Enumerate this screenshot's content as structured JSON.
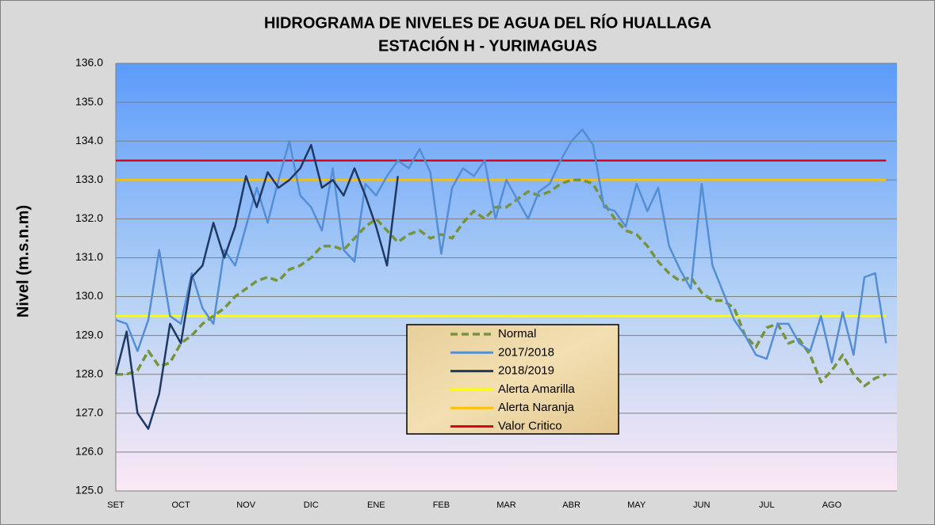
{
  "chart_data": {
    "type": "line",
    "title": "HIDROGRAMA DE NIVELES DE AGUA DEL RÍO HUALLAGA",
    "subtitle": "ESTACIÓN H - YURIMAGUAS",
    "y_label": "Nivel (m.s.n.m)",
    "categories": [
      "SET",
      null,
      null,
      null,
      null,
      null,
      "OCT",
      null,
      null,
      null,
      null,
      null,
      "NOV",
      null,
      null,
      null,
      null,
      null,
      "DIC",
      null,
      null,
      null,
      null,
      null,
      "ENE",
      null,
      null,
      null,
      null,
      null,
      "FEB",
      null,
      null,
      null,
      null,
      null,
      "MAR",
      null,
      null,
      null,
      null,
      null,
      "ABR",
      null,
      null,
      null,
      null,
      null,
      "MAY",
      null,
      null,
      null,
      null,
      null,
      "JUN",
      null,
      null,
      null,
      null,
      null,
      "JUL",
      null,
      null,
      null,
      null,
      null,
      "AGO",
      null,
      null,
      null,
      null,
      null
    ],
    "ylim": [
      125,
      136
    ],
    "yticks": [
      {
        "value": 125,
        "label": "125.0"
      },
      {
        "value": 126,
        "label": "126.0"
      },
      {
        "value": 127,
        "label": "127.0"
      },
      {
        "value": 128,
        "label": "128.0"
      },
      {
        "value": 129,
        "label": "129.0"
      },
      {
        "value": 130,
        "label": "130.0"
      },
      {
        "value": 131,
        "label": "131.0"
      },
      {
        "value": 132,
        "label": "132.0"
      },
      {
        "value": 133,
        "label": "133.0"
      },
      {
        "value": 134,
        "label": "134.0"
      },
      {
        "value": 135,
        "label": "135.0"
      },
      {
        "value": 136,
        "label": "136.0"
      }
    ],
    "grid": true,
    "series": [
      {
        "name": "Normal",
        "color": "#77933c",
        "dashed": true,
        "values": [
          128.0,
          128.0,
          128.1,
          128.6,
          128.2,
          128.3,
          128.8,
          129.0,
          129.3,
          129.5,
          129.7,
          130.0,
          130.2,
          130.4,
          130.5,
          130.4,
          130.7,
          130.8,
          131.0,
          131.3,
          131.3,
          131.2,
          131.5,
          131.8,
          132.0,
          131.7,
          131.4,
          131.6,
          131.7,
          131.5,
          131.6,
          131.5,
          131.9,
          132.2,
          132.0,
          132.3,
          132.3,
          132.5,
          132.7,
          132.6,
          132.7,
          132.9,
          133.0,
          133.0,
          132.9,
          132.4,
          132.0,
          131.7,
          131.6,
          131.3,
          130.9,
          130.6,
          130.4,
          130.5,
          130.1,
          129.9,
          129.9,
          129.7,
          129.0,
          128.7,
          129.2,
          129.3,
          128.8,
          128.9,
          128.5,
          127.8,
          128.1,
          128.5,
          128.0,
          127.7,
          127.9,
          128.0
        ]
      },
      {
        "name": "2017/2018",
        "color": "#558ed5",
        "values": [
          129.4,
          129.3,
          128.6,
          129.4,
          131.2,
          129.5,
          129.3,
          130.6,
          129.7,
          129.3,
          131.2,
          130.8,
          131.8,
          132.8,
          131.9,
          133.0,
          134.0,
          132.6,
          132.3,
          131.7,
          133.3,
          131.2,
          130.9,
          132.9,
          132.6,
          133.1,
          133.5,
          133.3,
          133.8,
          133.2,
          131.1,
          132.8,
          133.3,
          133.1,
          133.5,
          132.0,
          133.0,
          132.5,
          132.0,
          132.7,
          132.9,
          133.5,
          134.0,
          134.3,
          133.9,
          132.3,
          132.2,
          131.8,
          132.9,
          132.2,
          132.8,
          131.3,
          130.7,
          130.2,
          132.9,
          130.8,
          130.1,
          129.4,
          129.0,
          128.5,
          128.4,
          129.3,
          129.3,
          128.8,
          128.6,
          129.5,
          128.3,
          129.6,
          128.5,
          130.5,
          130.6,
          128.8
        ]
      },
      {
        "name": "2018/2019",
        "color": "#1f3864",
        "values": [
          128.0,
          129.1,
          127.0,
          126.6,
          127.5,
          129.3,
          128.8,
          130.5,
          130.8,
          131.9,
          131.0,
          131.8,
          133.1,
          132.3,
          133.2,
          132.8,
          133.0,
          133.3,
          133.9,
          132.8,
          133.0,
          132.6,
          133.3,
          132.6,
          131.8,
          130.8,
          133.1,
          null,
          null,
          null,
          null,
          null,
          null,
          null,
          null,
          null,
          null,
          null,
          null,
          null,
          null,
          null,
          null,
          null,
          null,
          null,
          null,
          null,
          null,
          null,
          null,
          null,
          null,
          null,
          null,
          null,
          null,
          null,
          null,
          null,
          null,
          null,
          null,
          null,
          null,
          null,
          null,
          null,
          null,
          null,
          null,
          null
        ]
      },
      {
        "name": "Alerta Amarilla",
        "color": "#ffff00",
        "values": [
          129.5,
          129.5,
          129.5,
          129.5,
          129.5,
          129.5,
          129.5,
          129.5,
          129.5,
          129.5,
          129.5,
          129.5,
          129.5,
          129.5,
          129.5,
          129.5,
          129.5,
          129.5,
          129.5,
          129.5,
          129.5,
          129.5,
          129.5,
          129.5,
          129.5,
          129.5,
          129.5,
          129.5,
          129.5,
          129.5,
          129.5,
          129.5,
          129.5,
          129.5,
          129.5,
          129.5,
          129.5,
          129.5,
          129.5,
          129.5,
          129.5,
          129.5,
          129.5,
          129.5,
          129.5,
          129.5,
          129.5,
          129.5,
          129.5,
          129.5,
          129.5,
          129.5,
          129.5,
          129.5,
          129.5,
          129.5,
          129.5,
          129.5,
          129.5,
          129.5,
          129.5,
          129.5,
          129.5,
          129.5,
          129.5,
          129.5,
          129.5,
          129.5,
          129.5,
          129.5,
          129.5,
          129.5
        ]
      },
      {
        "name": "Alerta Naranja",
        "color": "#ffc000",
        "values": [
          133,
          133,
          133,
          133,
          133,
          133,
          133,
          133,
          133,
          133,
          133,
          133,
          133,
          133,
          133,
          133,
          133,
          133,
          133,
          133,
          133,
          133,
          133,
          133,
          133,
          133,
          133,
          133,
          133,
          133,
          133,
          133,
          133,
          133,
          133,
          133,
          133,
          133,
          133,
          133,
          133,
          133,
          133,
          133,
          133,
          133,
          133,
          133,
          133,
          133,
          133,
          133,
          133,
          133,
          133,
          133,
          133,
          133,
          133,
          133,
          133,
          133,
          133,
          133,
          133,
          133,
          133,
          133,
          133,
          133,
          133,
          133
        ]
      },
      {
        "name": "Valor Critico",
        "color": "#e0001b",
        "values": [
          133.5,
          133.5,
          133.5,
          133.5,
          133.5,
          133.5,
          133.5,
          133.5,
          133.5,
          133.5,
          133.5,
          133.5,
          133.5,
          133.5,
          133.5,
          133.5,
          133.5,
          133.5,
          133.5,
          133.5,
          133.5,
          133.5,
          133.5,
          133.5,
          133.5,
          133.5,
          133.5,
          133.5,
          133.5,
          133.5,
          133.5,
          133.5,
          133.5,
          133.5,
          133.5,
          133.5,
          133.5,
          133.5,
          133.5,
          133.5,
          133.5,
          133.5,
          133.5,
          133.5,
          133.5,
          133.5,
          133.5,
          133.5,
          133.5,
          133.5,
          133.5,
          133.5,
          133.5,
          133.5,
          133.5,
          133.5,
          133.5,
          133.5,
          133.5,
          133.5,
          133.5,
          133.5,
          133.5,
          133.5,
          133.5,
          133.5,
          133.5,
          133.5,
          133.5,
          133.5,
          133.5,
          133.5
        ]
      }
    ]
  }
}
